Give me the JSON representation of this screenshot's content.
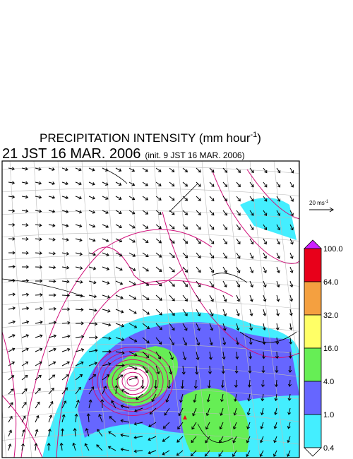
{
  "title": {
    "main": "PRECIPITATION INTENSITY (mm hour",
    "exponent": "-1",
    "close": ")"
  },
  "subtitle": {
    "time": "21 JST 16 MAR. 2006",
    "init": "(init. 9 JST 16 MAR. 2006)"
  },
  "vector_legend": {
    "label": "20 ms",
    "exponent": "-1"
  },
  "colorbar": {
    "labels": [
      "100.0",
      "64.0",
      "32.0",
      "16.0",
      "4.0",
      "1.0",
      "0.4"
    ],
    "colors": [
      "#e8001a",
      "#f4a040",
      "#ffff66",
      "#66ee55",
      "#6666ff",
      "#44eeff"
    ],
    "over_color": "#cc22ff",
    "under_color": "#ffffff"
  }
}
